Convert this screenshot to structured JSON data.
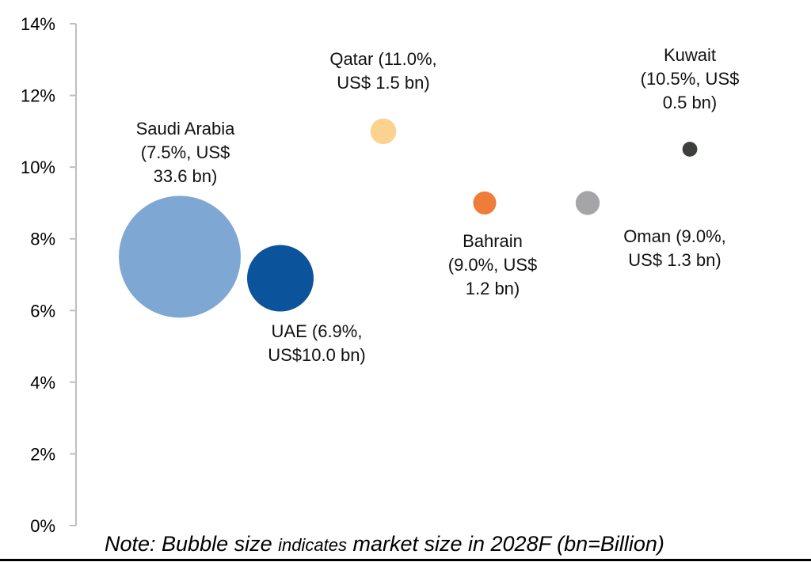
{
  "chart_data": {
    "type": "bubble",
    "title": "",
    "xlabel": "",
    "ylabel": "",
    "ylim": [
      0,
      14
    ],
    "y_ticks": [
      "0%",
      "2%",
      "4%",
      "6%",
      "8%",
      "10%",
      "12%",
      "14%"
    ],
    "grid": false,
    "bubble_size_unit": "US$ bn",
    "series": [
      {
        "name": "Saudi Arabia",
        "growth": 7.5,
        "size": 33.6,
        "color": "#7FA7D3",
        "label": [
          "Saudi Arabia",
          "(7.5%, US$",
          "33.6 bn)"
        ]
      },
      {
        "name": "UAE",
        "growth": 6.9,
        "size": 10.0,
        "color": "#0B539B",
        "label": [
          "UAE (6.9%,",
          "US$10.0 bn)"
        ]
      },
      {
        "name": "Qatar",
        "growth": 11.0,
        "size": 1.5,
        "color": "#FAD48E",
        "label": [
          "Qatar (11.0%,",
          "US$ 1.5 bn)"
        ]
      },
      {
        "name": "Bahrain",
        "growth": 9.0,
        "size": 1.2,
        "color": "#EE7D3A",
        "label": [
          "Bahrain",
          "(9.0%, US$",
          "1.2 bn)"
        ]
      },
      {
        "name": "Oman",
        "growth": 9.0,
        "size": 1.3,
        "color": "#A5A5A8",
        "label": [
          "Oman (9.0%,",
          "US$ 1.3 bn)"
        ]
      },
      {
        "name": "Kuwait",
        "growth": 10.5,
        "size": 0.5,
        "color": "#3D3F3C",
        "label": [
          "Kuwait",
          "(10.5%, US$",
          "0.5 bn)"
        ]
      }
    ]
  },
  "note": {
    "part1": "Note: Bubble size ",
    "part2": "indicates",
    "part3": " market size in 2028F (bn=Billion)"
  }
}
